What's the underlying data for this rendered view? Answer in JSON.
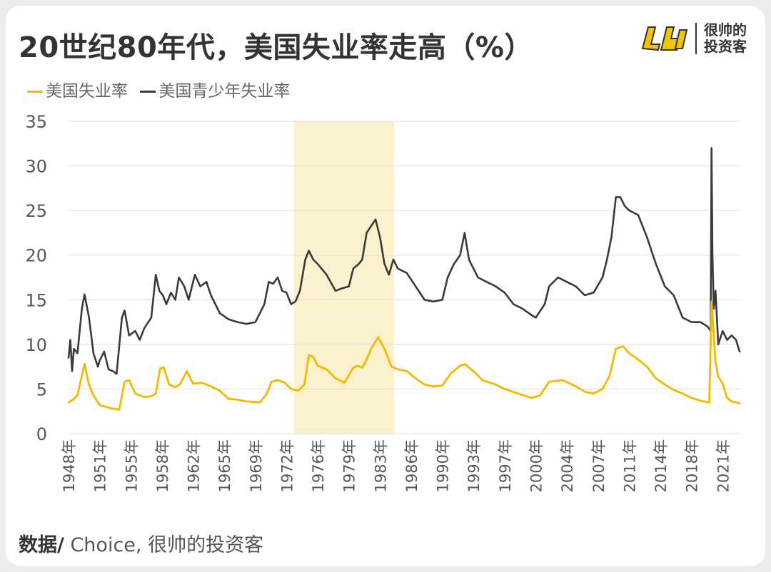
{
  "title": "20世纪80年代，美国失业率走高（%）",
  "brand": {
    "name_line1": "很帅的",
    "name_line2": "投资客",
    "logo_icon": "shuai-logo-icon"
  },
  "source": {
    "prefix": "数据/",
    "text": " Choice, 很帅的投资客"
  },
  "colors": {
    "unemployment": "#f5b800",
    "youth": "#3a3a3a",
    "highlight": "#fbf1cc",
    "grid": "#dcdcdc",
    "tick": "#555555"
  },
  "chart_data": {
    "type": "line",
    "y_ticks": [
      0,
      5,
      10,
      15,
      20,
      25,
      30,
      35
    ],
    "ylim": [
      0,
      35
    ],
    "xlim": [
      1948,
      2023.4
    ],
    "x_tick_labels": [
      "1948年",
      "1951年",
      "1955年",
      "1958年",
      "1962年",
      "1965年",
      "1969年",
      "1972年",
      "1976年",
      "1979年",
      "1983年",
      "1986年",
      "1990年",
      "1993年",
      "1997年",
      "2000年",
      "2004年",
      "2007年",
      "2011年",
      "2014年",
      "2018年",
      "2021年"
    ],
    "x_tick_values": [
      1948,
      1951.5,
      1955,
      1958.5,
      1962,
      1965.5,
      1969,
      1972.5,
      1976,
      1979.5,
      1983,
      1986.5,
      1990,
      1993.5,
      1997,
      2000.5,
      2004,
      2007.5,
      2011,
      2014.5,
      2018,
      2021.5
    ],
    "shaded_range": [
      1973.3,
      1984.6
    ],
    "series": [
      {
        "name": "美国失业率",
        "color": "#f5b800",
        "x": [
          1948,
          1948.5,
          1949,
          1949.5,
          1949.8,
          1950.3,
          1950.8,
          1951.5,
          1952.2,
          1953,
          1953.7,
          1954.3,
          1954.8,
          1955.5,
          1956.5,
          1957.3,
          1957.8,
          1958.3,
          1958.7,
          1959.3,
          1960,
          1960.5,
          1961.3,
          1962,
          1963,
          1964,
          1965,
          1966,
          1967,
          1968,
          1969.5,
          1970.3,
          1970.8,
          1971.5,
          1972.3,
          1973,
          1973.8,
          1974.5,
          1975,
          1975.5,
          1976,
          1977,
          1978,
          1979,
          1980,
          1980.5,
          1981,
          1981.5,
          1982,
          1982.8,
          1983.5,
          1984.3,
          1985,
          1986,
          1987,
          1988,
          1989,
          1990,
          1991,
          1992,
          1992.5,
          1993.5,
          1994.5,
          1996,
          1997,
          1998.5,
          2000,
          2001,
          2002,
          2003.5,
          2005,
          2006,
          2007,
          2008,
          2008.8,
          2009.5,
          2010.3,
          2011,
          2012,
          2013,
          2014,
          2015,
          2016,
          2017,
          2018,
          2019,
          2020,
          2020.25,
          2020.35,
          2020.7,
          2021,
          2021.5,
          2022,
          2022.5,
          2023,
          2023.4
        ],
        "y": [
          3.5,
          3.8,
          4.3,
          6.5,
          7.8,
          5.5,
          4.3,
          3.2,
          3.0,
          2.8,
          2.7,
          5.8,
          6.0,
          4.5,
          4.1,
          4.2,
          4.5,
          7.3,
          7.4,
          5.5,
          5.2,
          5.5,
          7.0,
          5.6,
          5.7,
          5.3,
          4.8,
          3.9,
          3.8,
          3.6,
          3.5,
          4.5,
          5.8,
          6.0,
          5.7,
          5.0,
          4.8,
          5.5,
          8.8,
          8.6,
          7.6,
          7.2,
          6.2,
          5.7,
          7.4,
          7.6,
          7.4,
          8.3,
          9.5,
          10.8,
          9.5,
          7.5,
          7.2,
          7.0,
          6.2,
          5.5,
          5.3,
          5.4,
          6.8,
          7.6,
          7.8,
          7.0,
          6.0,
          5.5,
          5.0,
          4.5,
          4.0,
          4.3,
          5.8,
          6.0,
          5.3,
          4.7,
          4.5,
          5.0,
          6.5,
          9.5,
          9.8,
          9.0,
          8.3,
          7.5,
          6.2,
          5.5,
          4.9,
          4.5,
          4.0,
          3.7,
          3.5,
          14.8,
          13.2,
          8.0,
          6.4,
          5.6,
          4.0,
          3.6,
          3.5,
          3.4
        ]
      },
      {
        "name": "美国青少年失业率",
        "color": "#3a3a3a",
        "x": [
          1948,
          1948.2,
          1948.4,
          1948.6,
          1949,
          1949.5,
          1949.8,
          1950.3,
          1950.8,
          1951.3,
          1951.5,
          1952,
          1952.5,
          1953,
          1953.4,
          1954,
          1954.3,
          1954.8,
          1955.5,
          1956,
          1956.5,
          1957.3,
          1957.8,
          1958.2,
          1958.6,
          1959,
          1959.5,
          1960,
          1960.4,
          1961,
          1961.5,
          1962.2,
          1962.8,
          1963.5,
          1964,
          1965,
          1966,
          1967,
          1968,
          1969,
          1970,
          1970.5,
          1971,
          1971.5,
          1972,
          1972.5,
          1973,
          1973.5,
          1974,
          1974.6,
          1975,
          1975.5,
          1976,
          1977,
          1978,
          1978.8,
          1979.5,
          1980,
          1980.6,
          1981,
          1981.5,
          1982.5,
          1983,
          1983.5,
          1984,
          1984.5,
          1985,
          1986,
          1987,
          1988,
          1989,
          1990,
          1990.6,
          1991.3,
          1992,
          1992.5,
          1993,
          1994,
          1995,
          1996,
          1997,
          1998,
          1999,
          2000,
          2000.5,
          2001.5,
          2002,
          2003,
          2004,
          2005,
          2006,
          2007,
          2008,
          2008.5,
          2009,
          2009.5,
          2010,
          2010.5,
          2011,
          2012,
          2013,
          2014,
          2015,
          2016,
          2017,
          2018,
          2019,
          2019.8,
          2020.15,
          2020.25,
          2020.35,
          2020.5,
          2020.7,
          2021,
          2021.5,
          2022,
          2022.5,
          2023,
          2023.4
        ],
        "y": [
          8.5,
          10.5,
          7.0,
          9.5,
          9.0,
          14.0,
          15.6,
          13.0,
          9.0,
          7.5,
          8.2,
          9.2,
          7.2,
          7.0,
          6.7,
          13.0,
          13.8,
          11.0,
          11.5,
          10.5,
          11.8,
          13.0,
          17.8,
          16.0,
          15.5,
          14.5,
          15.8,
          15.0,
          17.5,
          16.5,
          15.0,
          17.8,
          16.5,
          17.0,
          15.5,
          13.5,
          12.8,
          12.5,
          12.3,
          12.5,
          14.5,
          17.0,
          16.8,
          17.5,
          16.0,
          15.8,
          14.5,
          14.8,
          16.0,
          19.5,
          20.5,
          19.5,
          19.0,
          17.8,
          16.0,
          16.3,
          16.5,
          18.5,
          19.0,
          19.5,
          22.5,
          24.0,
          22.0,
          19.0,
          17.8,
          19.5,
          18.5,
          18.0,
          16.5,
          15.0,
          14.8,
          15.0,
          17.5,
          19.0,
          20.0,
          22.5,
          19.5,
          17.5,
          17.0,
          16.5,
          15.8,
          14.5,
          14.0,
          13.3,
          13.0,
          14.5,
          16.5,
          17.5,
          17.0,
          16.5,
          15.5,
          15.8,
          17.5,
          19.5,
          22.0,
          26.5,
          26.5,
          25.5,
          25.0,
          24.5,
          22.0,
          19.0,
          16.5,
          15.5,
          13.0,
          12.5,
          12.5,
          12.0,
          11.5,
          32.0,
          20.0,
          14.0,
          16.0,
          10.0,
          11.5,
          10.5,
          11.0,
          10.5,
          9.2
        ]
      }
    ]
  }
}
